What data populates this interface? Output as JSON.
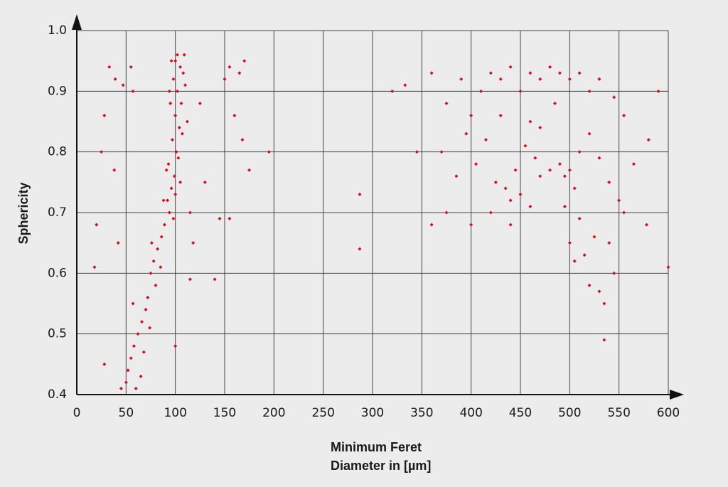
{
  "chart_data": {
    "type": "scatter",
    "xlabel": "Minimum Feret Diameter in [µm]",
    "ylabel": "Sphericity",
    "color": "#e3061b",
    "grid": true,
    "xlim": [
      0,
      600
    ],
    "xticks": [
      0,
      50,
      100,
      150,
      200,
      250,
      300,
      350,
      400,
      450,
      500,
      550,
      600
    ],
    "ylim": [
      0.4,
      1
    ],
    "yticks": [
      0.4,
      0.5,
      0.6,
      0.7,
      0.8,
      0.9,
      {
        "value": 1,
        "label": "1.0"
      }
    ],
    "x": [
      100,
      105,
      98,
      102,
      108,
      95,
      100,
      104,
      97,
      101,
      93,
      99,
      106,
      110,
      96,
      92,
      103,
      107,
      94,
      100,
      89,
      86,
      91,
      98,
      105,
      112,
      102,
      96,
      109,
      94,
      82,
      78,
      75,
      80,
      72,
      70,
      66,
      62,
      58,
      55,
      52,
      50,
      60,
      65,
      68,
      74,
      57,
      85,
      76,
      88,
      20,
      18,
      28,
      33,
      39,
      47,
      55,
      57,
      38,
      42,
      25,
      28,
      45,
      115,
      118,
      125,
      130,
      140,
      100,
      115,
      150,
      155,
      165,
      170,
      160,
      168,
      175,
      155,
      195,
      145,
      287,
      287,
      320,
      333,
      345,
      360,
      375,
      390,
      400,
      410,
      420,
      430,
      440,
      450,
      460,
      470,
      480,
      490,
      500,
      510,
      520,
      530,
      545,
      555,
      370,
      385,
      395,
      405,
      415,
      425,
      435,
      440,
      445,
      450,
      455,
      460,
      465,
      470,
      480,
      490,
      495,
      500,
      505,
      510,
      520,
      530,
      540,
      550,
      565,
      580,
      360,
      375,
      400,
      420,
      440,
      460,
      495,
      510,
      525,
      515,
      505,
      520,
      530,
      535,
      535,
      545,
      540,
      555,
      578,
      590,
      600,
      500,
      430,
      470,
      485
    ],
    "values": [
      0.95,
      0.94,
      0.92,
      0.9,
      0.93,
      0.88,
      0.86,
      0.84,
      0.82,
      0.8,
      0.78,
      0.76,
      0.88,
      0.91,
      0.74,
      0.72,
      0.79,
      0.83,
      0.7,
      0.73,
      0.68,
      0.66,
      0.77,
      0.69,
      0.75,
      0.85,
      0.96,
      0.95,
      0.96,
      0.9,
      0.64,
      0.62,
      0.6,
      0.58,
      0.56,
      0.54,
      0.52,
      0.5,
      0.48,
      0.46,
      0.44,
      0.42,
      0.41,
      0.43,
      0.47,
      0.51,
      0.55,
      0.61,
      0.65,
      0.72,
      0.68,
      0.61,
      0.86,
      0.94,
      0.92,
      0.91,
      0.94,
      0.9,
      0.77,
      0.65,
      0.8,
      0.45,
      0.41,
      0.7,
      0.65,
      0.88,
      0.75,
      0.59,
      0.48,
      0.59,
      0.92,
      0.94,
      0.93,
      0.95,
      0.86,
      0.82,
      0.77,
      0.69,
      0.8,
      0.69,
      0.73,
      0.64,
      0.9,
      0.91,
      0.8,
      0.93,
      0.88,
      0.92,
      0.86,
      0.9,
      0.93,
      0.92,
      0.94,
      0.9,
      0.93,
      0.92,
      0.94,
      0.93,
      0.92,
      0.93,
      0.9,
      0.92,
      0.89,
      0.86,
      0.8,
      0.76,
      0.83,
      0.78,
      0.82,
      0.75,
      0.74,
      0.72,
      0.77,
      0.73,
      0.81,
      0.85,
      0.79,
      0.76,
      0.77,
      0.78,
      0.76,
      0.77,
      0.74,
      0.8,
      0.83,
      0.79,
      0.75,
      0.72,
      0.78,
      0.82,
      0.68,
      0.7,
      0.68,
      0.7,
      0.68,
      0.71,
      0.71,
      0.69,
      0.66,
      0.63,
      0.62,
      0.58,
      0.57,
      0.55,
      0.49,
      0.6,
      0.65,
      0.7,
      0.68,
      0.9,
      0.61,
      0.65,
      0.86,
      0.84,
      0.88
    ]
  }
}
